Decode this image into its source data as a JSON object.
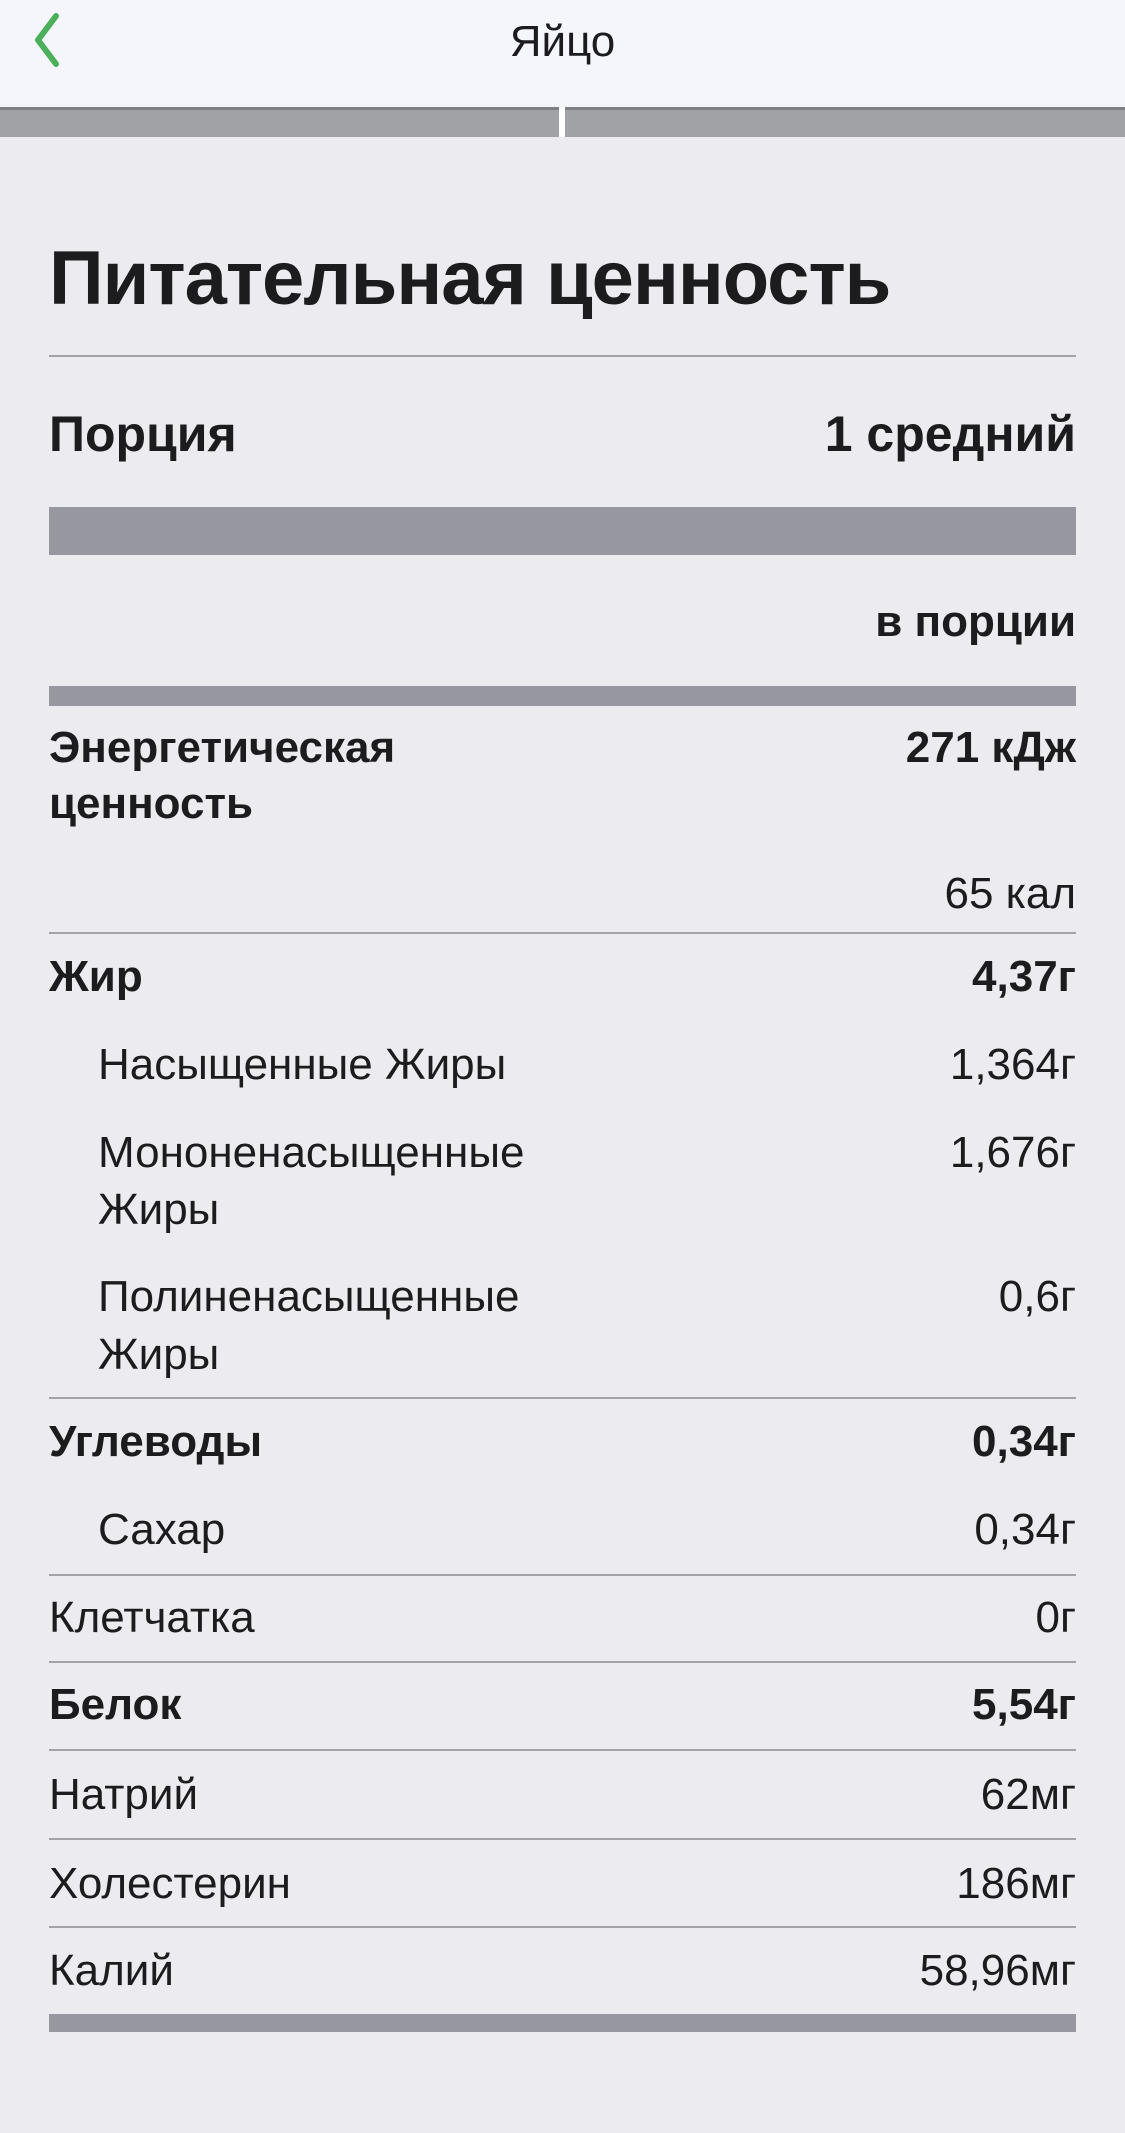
{
  "nav": {
    "title": "Яйцо",
    "back_icon": "chevron-left-icon",
    "accent": "#4caf5a"
  },
  "label": {
    "title": "Питательная ценность",
    "serving_label": "Порция",
    "serving_value": "1 средний",
    "per_serving": "в порции",
    "energy": {
      "label": "Энергетическая ценность",
      "label_line1": "Энергетическая",
      "label_line2": "ценность",
      "kj": "271 кДж",
      "kcal": "65 кал"
    },
    "rows": [
      {
        "label": "Жир",
        "value": "4,37г"
      },
      {
        "label": "Насыщенные Жиры",
        "value": "1,364г"
      },
      {
        "label1": "Мононенасыщенные",
        "label2": "Жиры",
        "value": "1,676г"
      },
      {
        "label1": "Полиненасыщенные",
        "label2": "Жиры",
        "value": "0,6г"
      },
      {
        "label": "Углеводы",
        "value": "0,34г"
      },
      {
        "label": "Сахар",
        "value": "0,34г"
      },
      {
        "label": "Клетчатка",
        "value": "0г"
      },
      {
        "label": "Белок",
        "value": "5,54г"
      },
      {
        "label": "Натрий",
        "value": "62мг"
      },
      {
        "label": "Холестерин",
        "value": "186мг"
      },
      {
        "label": "Калий",
        "value": "58,96мг"
      }
    ]
  }
}
